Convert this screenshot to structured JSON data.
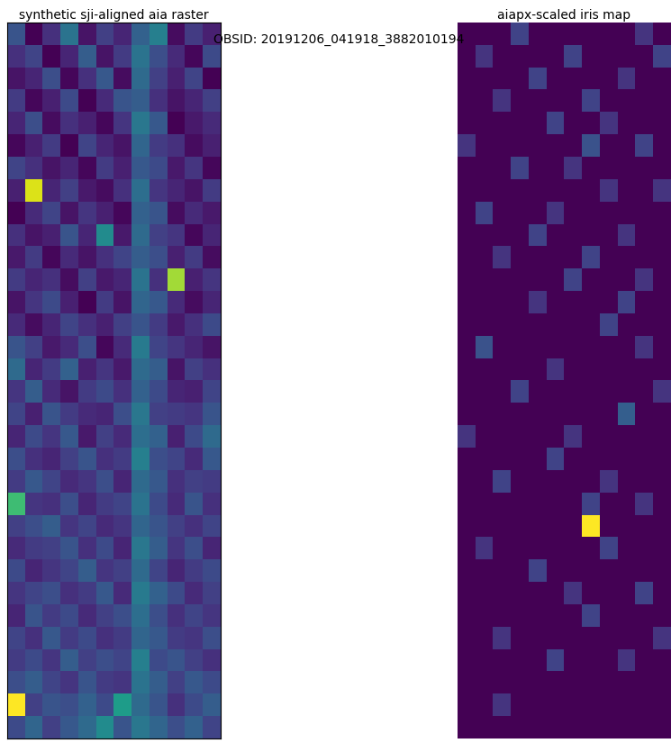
{
  "text": "OBSID: 20191206_041918_3882010194",
  "chart_data": [
    {
      "type": "heatmap",
      "title": "synthetic sji-aligned aia raster",
      "tick_labels": false,
      "frame": true,
      "cells": [
        [
          0.45,
          0.3,
          0.38,
          0.52,
          0.33,
          0.41,
          0.36,
          0.48,
          0.55,
          0.32,
          0.4,
          0.35
        ],
        [
          0.38,
          0.42,
          0.3,
          0.36,
          0.47,
          0.33,
          0.4,
          0.52,
          0.44,
          0.37,
          0.31,
          0.43
        ],
        [
          0.33,
          0.36,
          0.44,
          0.31,
          0.38,
          0.46,
          0.32,
          0.5,
          0.41,
          0.35,
          0.42,
          0.3
        ],
        [
          0.4,
          0.31,
          0.35,
          0.43,
          0.3,
          0.37,
          0.45,
          0.47,
          0.38,
          0.33,
          0.36,
          0.41
        ],
        [
          0.36,
          0.44,
          0.32,
          0.38,
          0.35,
          0.31,
          0.39,
          0.53,
          0.46,
          0.3,
          0.34,
          0.37
        ],
        [
          0.31,
          0.35,
          0.4,
          0.3,
          0.42,
          0.36,
          0.33,
          0.49,
          0.4,
          0.38,
          0.32,
          0.35
        ],
        [
          0.42,
          0.38,
          0.33,
          0.36,
          0.31,
          0.4,
          0.35,
          0.46,
          0.43,
          0.34,
          0.39,
          0.31
        ],
        [
          0.35,
          0.85,
          0.36,
          0.41,
          0.34,
          0.32,
          0.38,
          0.51,
          0.39,
          0.36,
          0.33,
          0.4
        ],
        [
          0.3,
          0.37,
          0.42,
          0.33,
          0.39,
          0.35,
          0.31,
          0.48,
          0.45,
          0.32,
          0.37,
          0.34
        ],
        [
          0.38,
          0.33,
          0.35,
          0.45,
          0.36,
          0.58,
          0.34,
          0.5,
          0.41,
          0.39,
          0.31,
          0.36
        ],
        [
          0.34,
          0.4,
          0.31,
          0.37,
          0.33,
          0.38,
          0.42,
          0.47,
          0.44,
          0.35,
          0.4,
          0.32
        ],
        [
          0.4,
          0.36,
          0.38,
          0.32,
          0.41,
          0.34,
          0.36,
          0.52,
          0.38,
          0.8,
          0.35,
          0.39
        ],
        [
          0.33,
          0.39,
          0.43,
          0.35,
          0.3,
          0.4,
          0.33,
          0.49,
          0.46,
          0.37,
          0.32,
          0.36
        ],
        [
          0.37,
          0.32,
          0.36,
          0.42,
          0.38,
          0.35,
          0.41,
          0.45,
          0.4,
          0.34,
          0.38,
          0.43
        ],
        [
          0.45,
          0.41,
          0.34,
          0.37,
          0.44,
          0.31,
          0.37,
          0.54,
          0.42,
          0.39,
          0.36,
          0.33
        ],
        [
          0.5,
          0.36,
          0.4,
          0.48,
          0.35,
          0.39,
          0.34,
          0.5,
          0.47,
          0.33,
          0.41,
          0.38
        ],
        [
          0.39,
          0.47,
          0.37,
          0.33,
          0.4,
          0.43,
          0.38,
          0.48,
          0.43,
          0.36,
          0.35,
          0.42
        ],
        [
          0.42,
          0.35,
          0.45,
          0.4,
          0.37,
          0.36,
          0.44,
          0.53,
          0.41,
          0.4,
          0.39,
          0.45
        ],
        [
          0.36,
          0.43,
          0.39,
          0.46,
          0.34,
          0.41,
          0.37,
          0.51,
          0.48,
          0.35,
          0.43,
          0.5
        ],
        [
          0.44,
          0.38,
          0.36,
          0.41,
          0.45,
          0.38,
          0.4,
          0.55,
          0.44,
          0.42,
          0.37,
          0.46
        ],
        [
          0.4,
          0.46,
          0.42,
          0.37,
          0.39,
          0.44,
          0.36,
          0.5,
          0.46,
          0.38,
          0.41,
          0.4
        ],
        [
          0.7,
          0.39,
          0.38,
          0.44,
          0.36,
          0.4,
          0.42,
          0.52,
          0.43,
          0.37,
          0.45,
          0.38
        ],
        [
          0.41,
          0.44,
          0.47,
          0.39,
          0.42,
          0.37,
          0.39,
          0.49,
          0.45,
          0.41,
          0.38,
          0.42
        ],
        [
          0.37,
          0.4,
          0.41,
          0.45,
          0.38,
          0.43,
          0.36,
          0.53,
          0.47,
          0.39,
          0.44,
          0.36
        ],
        [
          0.43,
          0.36,
          0.39,
          0.42,
          0.47,
          0.39,
          0.41,
          0.5,
          0.42,
          0.36,
          0.4,
          0.43
        ],
        [
          0.39,
          0.42,
          0.44,
          0.38,
          0.4,
          0.46,
          0.37,
          0.54,
          0.48,
          0.43,
          0.37,
          0.41
        ],
        [
          0.36,
          0.45,
          0.4,
          0.43,
          0.37,
          0.41,
          0.44,
          0.51,
          0.44,
          0.38,
          0.42,
          0.39
        ],
        [
          0.42,
          0.38,
          0.46,
          0.4,
          0.43,
          0.38,
          0.4,
          0.49,
          0.46,
          0.4,
          0.39,
          0.44
        ],
        [
          0.4,
          0.43,
          0.39,
          0.47,
          0.41,
          0.44,
          0.42,
          0.55,
          0.43,
          0.45,
          0.41,
          0.38
        ],
        [
          0.44,
          0.47,
          0.42,
          0.39,
          0.45,
          0.4,
          0.39,
          0.52,
          0.47,
          0.41,
          0.46,
          0.43
        ],
        [
          0.88,
          0.41,
          0.45,
          0.44,
          0.48,
          0.43,
          0.62,
          0.5,
          0.45,
          0.38,
          0.43,
          0.47
        ],
        [
          0.43,
          0.49,
          0.41,
          0.46,
          0.5,
          0.58,
          0.45,
          0.53,
          0.49,
          0.44,
          0.48,
          0.42
        ]
      ]
    },
    {
      "type": "heatmap",
      "title": "aiapx-scaled iris map",
      "tick_labels": false,
      "frame": false,
      "cells": [
        [
          0,
          0,
          0,
          0.2,
          0,
          0,
          0,
          0,
          0,
          0,
          0.15,
          0
        ],
        [
          0,
          0.15,
          0,
          0,
          0,
          0,
          0.2,
          0,
          0,
          0,
          0,
          0.2
        ],
        [
          0,
          0,
          0,
          0,
          0.2,
          0,
          0,
          0,
          0,
          0.15,
          0,
          0
        ],
        [
          0,
          0,
          0.15,
          0,
          0,
          0,
          0,
          0.2,
          0,
          0,
          0,
          0
        ],
        [
          0,
          0,
          0,
          0,
          0,
          0.2,
          0,
          0,
          0.15,
          0,
          0,
          0
        ],
        [
          0.15,
          0,
          0,
          0,
          0,
          0,
          0,
          0.25,
          0,
          0,
          0.2,
          0
        ],
        [
          0,
          0,
          0,
          0.2,
          0,
          0,
          0.15,
          0,
          0,
          0,
          0,
          0
        ],
        [
          0,
          0,
          0,
          0,
          0,
          0,
          0,
          0,
          0.15,
          0,
          0,
          0.15
        ],
        [
          0,
          0.2,
          0,
          0,
          0,
          0.15,
          0,
          0,
          0,
          0,
          0,
          0
        ],
        [
          0,
          0,
          0,
          0,
          0.2,
          0,
          0,
          0,
          0,
          0.15,
          0,
          0
        ],
        [
          0,
          0,
          0.15,
          0,
          0,
          0,
          0,
          0.2,
          0,
          0,
          0,
          0
        ],
        [
          0,
          0,
          0,
          0,
          0,
          0,
          0.2,
          0,
          0,
          0,
          0.15,
          0
        ],
        [
          0,
          0,
          0,
          0,
          0.15,
          0,
          0,
          0,
          0,
          0.2,
          0,
          0
        ],
        [
          0,
          0,
          0,
          0,
          0,
          0,
          0,
          0,
          0.2,
          0,
          0,
          0
        ],
        [
          0,
          0.25,
          0,
          0,
          0,
          0,
          0,
          0,
          0,
          0,
          0.15,
          0
        ],
        [
          0,
          0,
          0,
          0,
          0,
          0.15,
          0,
          0,
          0,
          0,
          0,
          0
        ],
        [
          0,
          0,
          0,
          0.2,
          0,
          0,
          0,
          0,
          0,
          0,
          0,
          0.15
        ],
        [
          0,
          0,
          0,
          0,
          0,
          0,
          0,
          0,
          0,
          0.3,
          0,
          0
        ],
        [
          0.15,
          0,
          0,
          0,
          0,
          0,
          0.15,
          0,
          0,
          0,
          0,
          0
        ],
        [
          0,
          0,
          0,
          0,
          0,
          0.2,
          0,
          0,
          0,
          0,
          0,
          0
        ],
        [
          0,
          0,
          0.2,
          0,
          0,
          0,
          0,
          0,
          0.15,
          0,
          0,
          0
        ],
        [
          0,
          0,
          0,
          0,
          0,
          0,
          0,
          0.2,
          0,
          0,
          0.15,
          0
        ],
        [
          0,
          0,
          0,
          0,
          0,
          0,
          0,
          1.0,
          0,
          0,
          0,
          0
        ],
        [
          0,
          0.15,
          0,
          0,
          0,
          0,
          0,
          0,
          0.2,
          0,
          0,
          0
        ],
        [
          0,
          0,
          0,
          0,
          0.2,
          0,
          0,
          0,
          0,
          0,
          0,
          0
        ],
        [
          0,
          0,
          0,
          0,
          0,
          0,
          0.15,
          0,
          0,
          0,
          0.2,
          0
        ],
        [
          0,
          0,
          0,
          0,
          0,
          0,
          0,
          0.2,
          0,
          0,
          0,
          0
        ],
        [
          0,
          0,
          0.15,
          0,
          0,
          0,
          0,
          0,
          0,
          0,
          0,
          0.15
        ],
        [
          0,
          0,
          0,
          0,
          0,
          0.2,
          0,
          0,
          0,
          0.15,
          0,
          0
        ],
        [
          0,
          0,
          0,
          0,
          0,
          0,
          0,
          0,
          0,
          0,
          0,
          0
        ],
        [
          0,
          0,
          0.15,
          0,
          0,
          0,
          0,
          0,
          0,
          0,
          0,
          0
        ],
        [
          0,
          0,
          0,
          0,
          0,
          0,
          0,
          0,
          0,
          0,
          0,
          0
        ]
      ]
    }
  ]
}
